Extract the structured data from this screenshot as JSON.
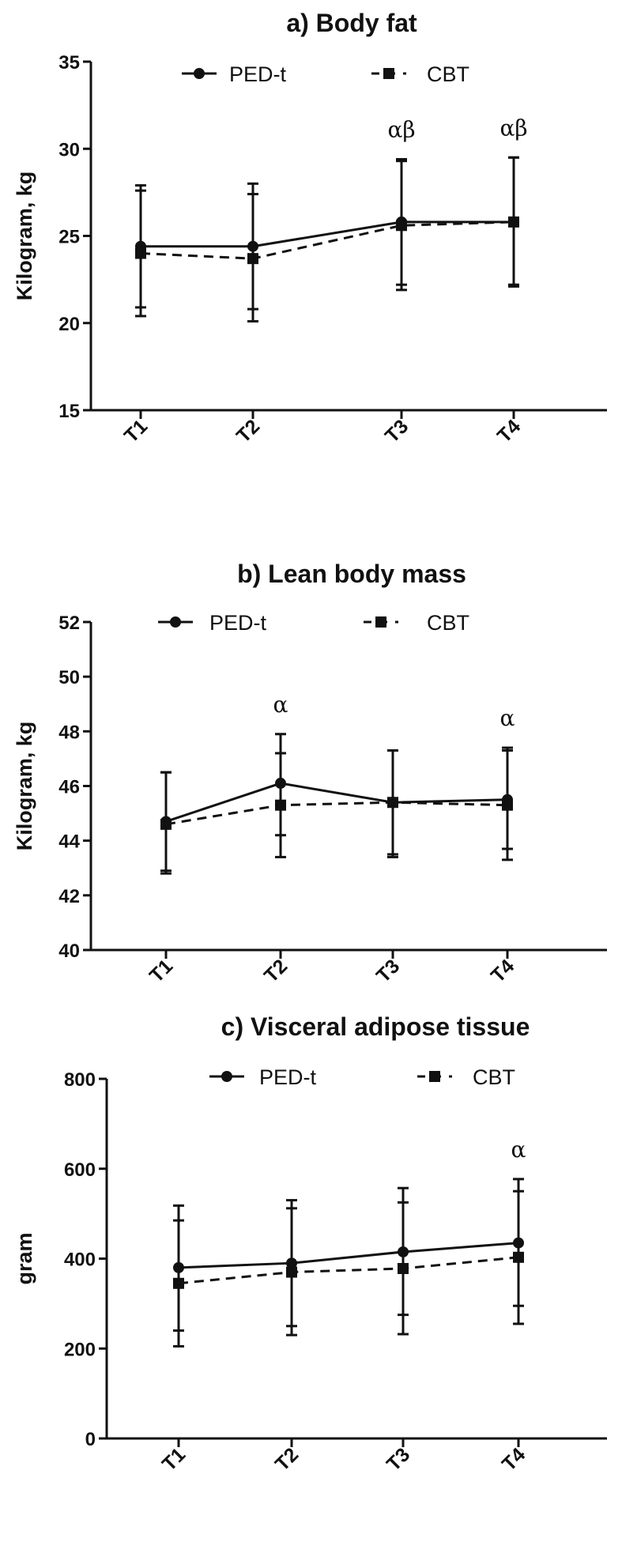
{
  "chart_data": [
    {
      "type": "line",
      "title": "a) Body fat",
      "ylabel": "Kilogram, kg",
      "xlabel": "",
      "categories": [
        "T1",
        "T2",
        "T3",
        "T4"
      ],
      "ylim": [
        15,
        35
      ],
      "yticks": [
        15,
        20,
        25,
        30,
        35
      ],
      "legend_position": "top",
      "series": [
        {
          "name": "PED-t",
          "style": "solid",
          "marker": "circle",
          "values": [
            24.4,
            24.4,
            25.8,
            25.8
          ],
          "err_low": [
            20.9,
            20.8,
            22.2,
            22.2
          ],
          "err_high": [
            27.9,
            28.0,
            29.4,
            29.5
          ]
        },
        {
          "name": "CBT",
          "style": "dashed",
          "marker": "square",
          "values": [
            24.0,
            23.7,
            25.6,
            25.8
          ],
          "err_low": [
            20.4,
            20.1,
            21.9,
            22.1
          ],
          "err_high": [
            27.6,
            27.4,
            29.3,
            29.5
          ]
        }
      ],
      "annotations": [
        {
          "category": "T3",
          "text": "αβ"
        },
        {
          "category": "T4",
          "text": "αβ"
        }
      ]
    },
    {
      "type": "line",
      "title": "b) Lean body mass",
      "ylabel": "Kilogram, kg",
      "xlabel": "",
      "categories": [
        "T1",
        "T2",
        "T3",
        "T4"
      ],
      "ylim": [
        40,
        52
      ],
      "yticks": [
        40,
        42,
        44,
        46,
        48,
        50,
        52
      ],
      "legend_position": "top",
      "series": [
        {
          "name": "PED-t",
          "style": "solid",
          "marker": "circle",
          "values": [
            44.7,
            46.1,
            45.4,
            45.5
          ],
          "err_low": [
            42.9,
            44.2,
            43.5,
            43.7
          ],
          "err_high": [
            46.5,
            47.9,
            47.3,
            47.4
          ]
        },
        {
          "name": "CBT",
          "style": "dashed",
          "marker": "square",
          "values": [
            44.6,
            45.3,
            45.4,
            45.3
          ],
          "err_low": [
            42.8,
            43.4,
            43.4,
            43.3
          ],
          "err_high": [
            46.5,
            47.2,
            47.3,
            47.3
          ]
        }
      ],
      "annotations": [
        {
          "category": "T2",
          "text": "α"
        },
        {
          "category": "T4",
          "text": "α"
        }
      ]
    },
    {
      "type": "line",
      "title": "c) Visceral adipose tissue",
      "ylabel": "gram",
      "xlabel": "",
      "categories": [
        "T1",
        "T2",
        "T3",
        "T4"
      ],
      "ylim": [
        0,
        800
      ],
      "yticks": [
        0,
        200,
        400,
        600,
        800
      ],
      "legend_position": "top",
      "series": [
        {
          "name": "PED-t",
          "style": "solid",
          "marker": "circle",
          "values": [
            380,
            390,
            415,
            435
          ],
          "err_low": [
            240,
            250,
            275,
            295
          ],
          "err_high": [
            518,
            530,
            557,
            577
          ]
        },
        {
          "name": "CBT",
          "style": "dashed",
          "marker": "square",
          "values": [
            345,
            370,
            378,
            403
          ],
          "err_low": [
            205,
            230,
            232,
            255
          ],
          "err_high": [
            485,
            512,
            525,
            550
          ]
        }
      ],
      "annotations": [
        {
          "category": "T4",
          "text": "α"
        }
      ]
    }
  ]
}
